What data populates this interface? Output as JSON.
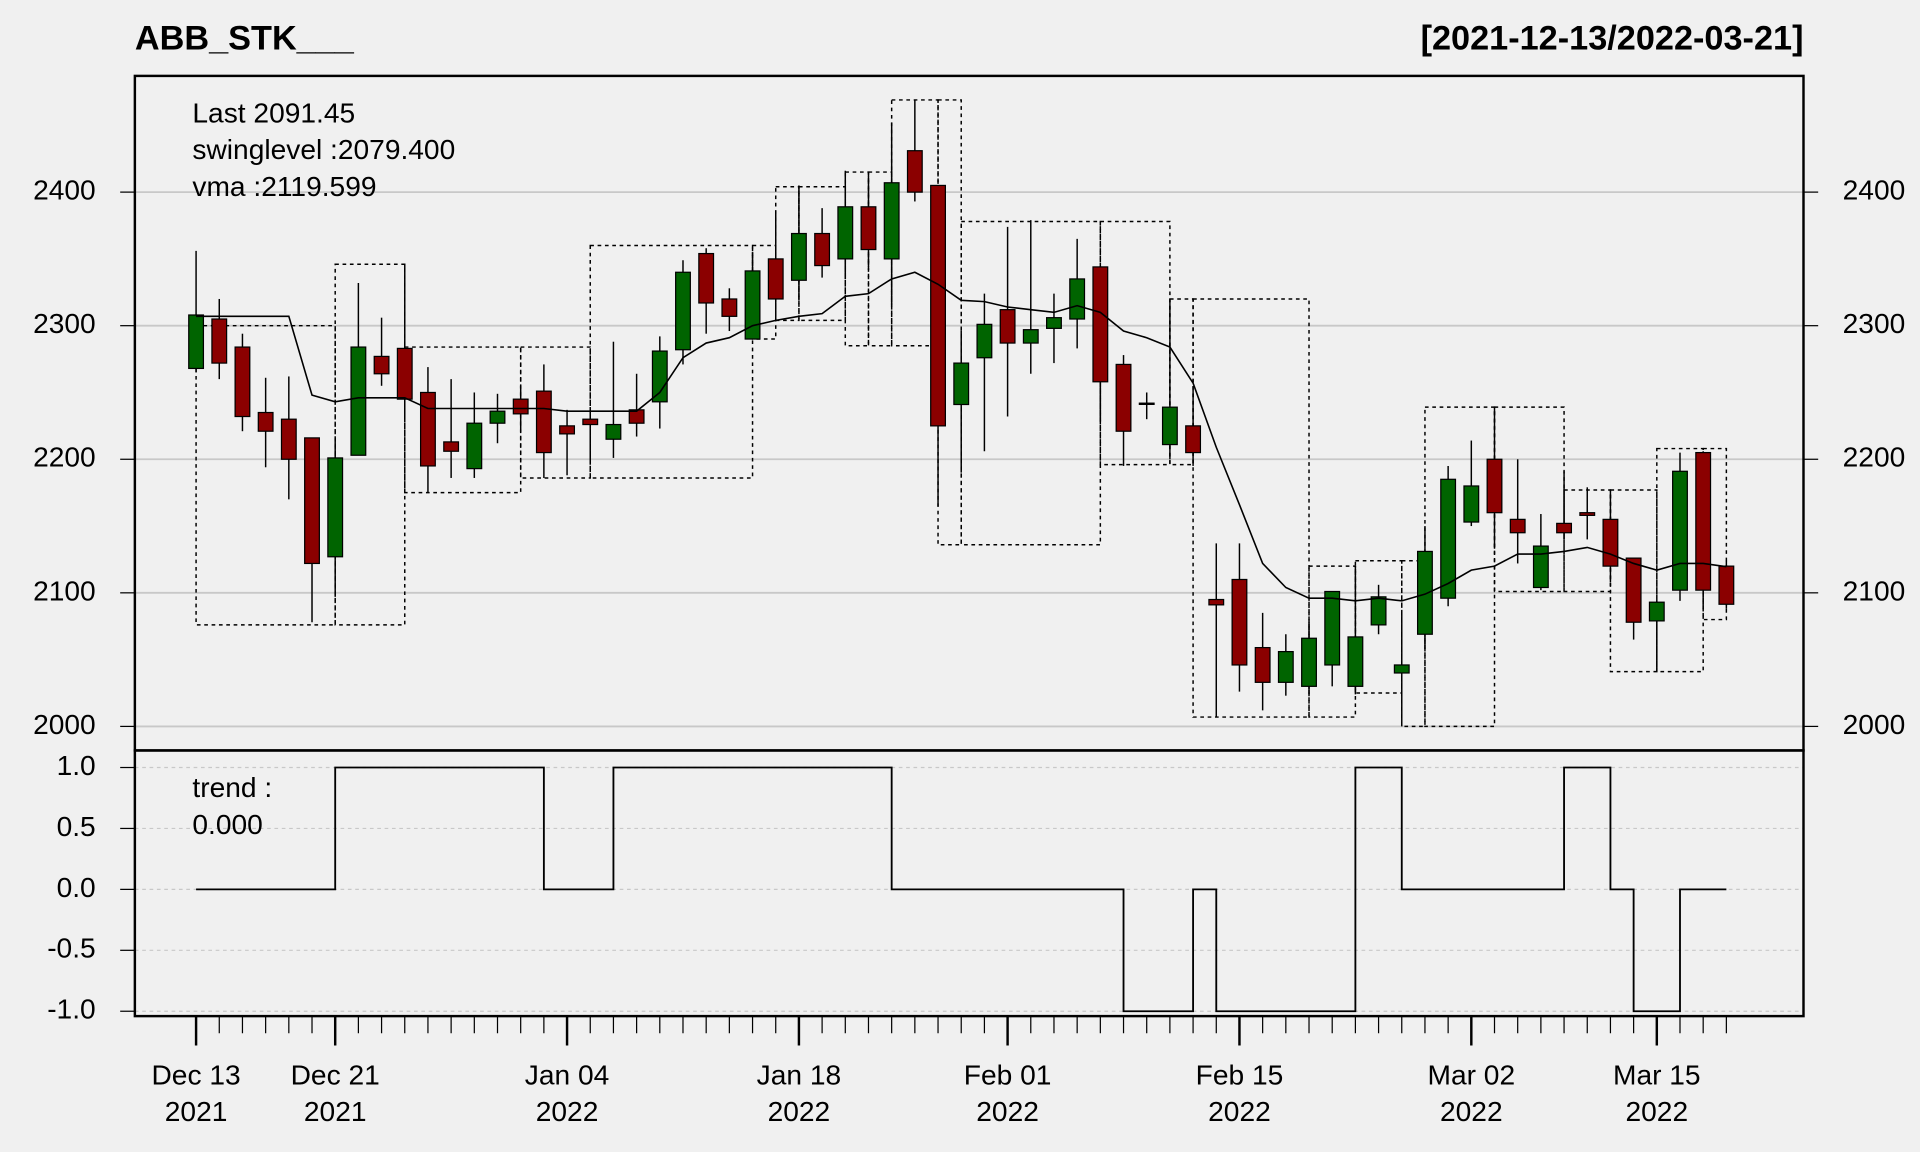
{
  "chart_data": {
    "type": "candlestick",
    "title": "ABB_STK___",
    "subtitle": "[2021-12-13/2022-03-21]",
    "categories": [
      "Dec 13\n2021",
      null,
      null,
      null,
      null,
      null,
      "Dec 21\n2021",
      null,
      null,
      null,
      null,
      null,
      null,
      null,
      null,
      null,
      "Jan 04\n2022",
      null,
      null,
      null,
      null,
      null,
      null,
      null,
      null,
      null,
      "Jan 18\n2022",
      null,
      null,
      null,
      null,
      null,
      null,
      null,
      null,
      "Feb 01\n2022",
      null,
      null,
      null,
      null,
      null,
      null,
      null,
      null,
      null,
      "Feb 15\n2022",
      null,
      null,
      null,
      null,
      null,
      null,
      null,
      null,
      null,
      "Mar 02\n2022",
      null,
      null,
      null,
      null,
      null,
      null,
      null,
      "Mar 15\n2022",
      null,
      null,
      null
    ],
    "open": [
      2268,
      2305,
      2284,
      2235,
      2230,
      2216,
      2127,
      2203,
      2277,
      2283,
      2250,
      2213,
      2193,
      2227,
      2245,
      2251,
      2225,
      2230,
      2215,
      2237,
      2243,
      2282,
      2354,
      2320,
      2290,
      2350,
      2334,
      2369,
      2350,
      2389,
      2350,
      2431,
      2405,
      2241,
      2276,
      2312,
      2287,
      2298,
      2305,
      2344,
      2271,
      2242,
      2211,
      2225,
      2095,
      2110,
      2059,
      2033,
      2030,
      2046,
      2030,
      2076,
      2040,
      2069,
      2096,
      2153,
      2200,
      2155,
      2104,
      2152,
      2160,
      2155,
      2126,
      2079,
      2102,
      2205,
      2120
    ],
    "high": [
      2356,
      2320,
      2294,
      2261,
      2262,
      2216,
      2215,
      2332,
      2306,
      2346,
      2269,
      2260,
      2250,
      2249,
      2255,
      2271,
      2237,
      2237,
      2288,
      2264,
      2292,
      2349,
      2358,
      2328,
      2355,
      2386,
      2405,
      2388,
      2416,
      2412,
      2452,
      2469,
      2405,
      2296,
      2324,
      2374,
      2379,
      2324,
      2365,
      2344,
      2278,
      2250,
      2319,
      2252,
      2137,
      2137,
      2085,
      2069,
      2078,
      2101,
      2120,
      2106,
      2085,
      2150,
      2195,
      2214,
      2239,
      2200,
      2159,
      2191,
      2179,
      2177,
      2126,
      2094,
      2205,
      2205,
      2124
    ],
    "low": [
      2265,
      2260,
      2221,
      2194,
      2170,
      2078,
      2097,
      2203,
      2255,
      2230,
      2175,
      2186,
      2186,
      2212,
      2223,
      2186,
      2188,
      2197,
      2201,
      2217,
      2223,
      2271,
      2294,
      2296,
      2290,
      2304,
      2319,
      2336,
      2335,
      2344,
      2315,
      2393,
      2165,
      2190,
      2206,
      2232,
      2264,
      2272,
      2283,
      2228,
      2195,
      2230,
      2200,
      2195,
      2007,
      2026,
      2012,
      2023,
      2024,
      2030,
      2024,
      2069,
      2000,
      2058,
      2090,
      2150,
      2133,
      2122,
      2102,
      2140,
      2140,
      2108,
      2065,
      2041,
      2094,
      2088,
      2088
    ],
    "close": [
      2308,
      2272,
      2232,
      2221,
      2200,
      2122,
      2201,
      2284,
      2264,
      2245,
      2195,
      2206,
      2227,
      2236,
      2234,
      2205,
      2219,
      2226,
      2226,
      2227,
      2281,
      2340,
      2317,
      2307,
      2341,
      2320,
      2369,
      2345,
      2389,
      2357,
      2407,
      2400,
      2225,
      2272,
      2301,
      2287,
      2297,
      2306,
      2335,
      2258,
      2221,
      2242,
      2239,
      2205,
      2091,
      2046,
      2033,
      2056,
      2066,
      2101,
      2067,
      2097,
      2046,
      2131,
      2185,
      2180,
      2160,
      2145,
      2135,
      2145,
      2158,
      2120,
      2078,
      2093,
      2191,
      2102,
      2091.45
    ],
    "up_color": "#006400",
    "down_color": "#8b0000",
    "vma": {
      "color": "#000000",
      "values": [
        2307,
        2307,
        2307,
        2307,
        2307,
        2248,
        2243,
        2246,
        2246,
        2246,
        2238,
        2238,
        2238,
        2238,
        2238,
        2238,
        2236,
        2236,
        2236,
        2236,
        2250,
        2276,
        2287,
        2291,
        2300,
        2304,
        2307,
        2309,
        2322,
        2324,
        2335,
        2340,
        2331,
        2319,
        2318,
        2314,
        2312,
        2310,
        2315,
        2310,
        2296,
        2291,
        2284,
        2257,
        2209,
        2166,
        2122,
        2104,
        2096,
        2096,
        2094,
        2096,
        2094,
        2099,
        2107,
        2117,
        2120,
        2129,
        2129,
        2131,
        2134,
        2129,
        2122,
        2117,
        2122,
        2122,
        2119.599
      ]
    },
    "swing_boxes": [
      {
        "from": 0,
        "to": 6,
        "low": 2076,
        "high": 2300
      },
      {
        "from": 6,
        "to": 9,
        "low": 2076,
        "high": 2346
      },
      {
        "from": 9,
        "to": 14,
        "low": 2175,
        "high": 2284
      },
      {
        "from": 14,
        "to": 17,
        "low": 2186,
        "high": 2284
      },
      {
        "from": 17,
        "to": 24,
        "low": 2186,
        "high": 2360
      },
      {
        "from": 24,
        "to": 25,
        "low": 2290,
        "high": 2360
      },
      {
        "from": 25,
        "to": 26,
        "low": 2304,
        "high": 2404
      },
      {
        "from": 26,
        "to": 28,
        "low": 2304,
        "high": 2404
      },
      {
        "from": 28,
        "to": 29,
        "low": 2285,
        "high": 2415
      },
      {
        "from": 29,
        "to": 30,
        "low": 2285,
        "high": 2415
      },
      {
        "from": 30,
        "to": 32,
        "low": 2285,
        "high": 2469
      },
      {
        "from": 32,
        "to": 33,
        "low": 2136,
        "high": 2469
      },
      {
        "from": 33,
        "to": 39,
        "low": 2136,
        "high": 2378
      },
      {
        "from": 39,
        "to": 42,
        "low": 2196,
        "high": 2378
      },
      {
        "from": 42,
        "to": 43,
        "low": 2196,
        "high": 2320
      },
      {
        "from": 43,
        "to": 48,
        "low": 2007,
        "high": 2320
      },
      {
        "from": 48,
        "to": 50,
        "low": 2007,
        "high": 2120
      },
      {
        "from": 50,
        "to": 52,
        "low": 2025,
        "high": 2124
      },
      {
        "from": 52,
        "to": 53,
        "low": 2000,
        "high": 2124
      },
      {
        "from": 53,
        "to": 56,
        "low": 2000,
        "high": 2239
      },
      {
        "from": 56,
        "to": 59,
        "low": 2101,
        "high": 2239
      },
      {
        "from": 59,
        "to": 61,
        "low": 2101,
        "high": 2177
      },
      {
        "from": 61,
        "to": 63,
        "low": 2041,
        "high": 2177
      },
      {
        "from": 63,
        "to": 65,
        "low": 2041,
        "high": 2208
      },
      {
        "from": 65,
        "to": 66,
        "low": 2080,
        "high": 2208
      }
    ],
    "annotations": [
      {
        "text": "Last 2091.45",
        "color": "#8b0000"
      },
      {
        "text": "swinglevel :2079.400",
        "color": "#000000"
      },
      {
        "text": "vma :2119.599",
        "color": "#000000"
      }
    ],
    "ylim": [
      1982,
      2487
    ],
    "yticks": [
      2000,
      2100,
      2200,
      2300,
      2400
    ],
    "grid": true,
    "trend": {
      "labels": [
        "trend :",
        "0.000"
      ],
      "values": [
        0,
        0,
        0,
        0,
        0,
        0,
        1,
        1,
        1,
        1,
        1,
        1,
        1,
        1,
        1,
        0,
        0,
        0,
        1,
        1,
        1,
        1,
        1,
        1,
        1,
        1,
        1,
        1,
        1,
        1,
        0,
        0,
        0,
        0,
        0,
        0,
        0,
        0,
        0,
        0,
        -1,
        -1,
        -1,
        0,
        -1,
        -1,
        -1,
        -1,
        -1,
        -1,
        1,
        1,
        0,
        0,
        0,
        0,
        0,
        0,
        0,
        1,
        1,
        0,
        -1,
        -1,
        0,
        0,
        0
      ],
      "ylim": [
        -1.04,
        1.14
      ],
      "yticks": [
        {
          "value": 1,
          "label": "1.0"
        },
        0.5,
        {
          "value": 0,
          "label": "0.0"
        },
        -0.5,
        {
          "value": -1,
          "label": "-1.0"
        }
      ],
      "grid": true
    }
  }
}
